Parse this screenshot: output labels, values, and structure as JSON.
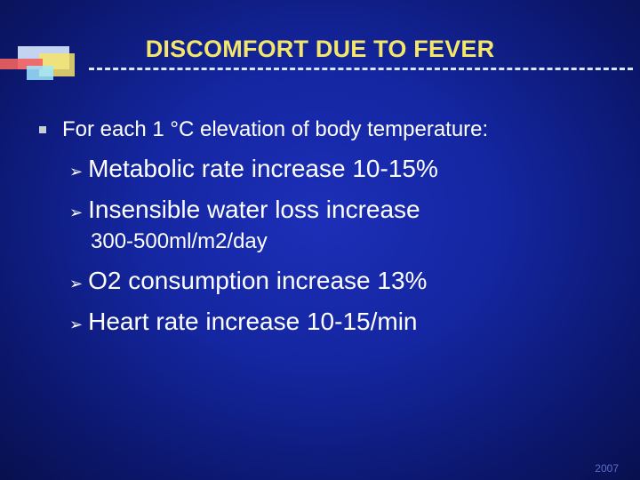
{
  "slide": {
    "title": "DISCOMFORT DUE TO FEVER",
    "bullet": "For each 1 °C elevation of body temperature:",
    "subbullets": [
      "Metabolic rate increase 10-15%",
      "Insensible water loss increase",
      "O2 consumption increase 13%",
      "Heart rate increase 10-15/min"
    ],
    "continuation": "300-500ml/m2/day",
    "footer": "2007"
  },
  "icons": {
    "bullet": "square-bullet-icon",
    "sub": "arrow-bullet-icon"
  },
  "colors": {
    "title": "#f3e66a",
    "text": "#ffffff",
    "background": "#1426a0"
  }
}
